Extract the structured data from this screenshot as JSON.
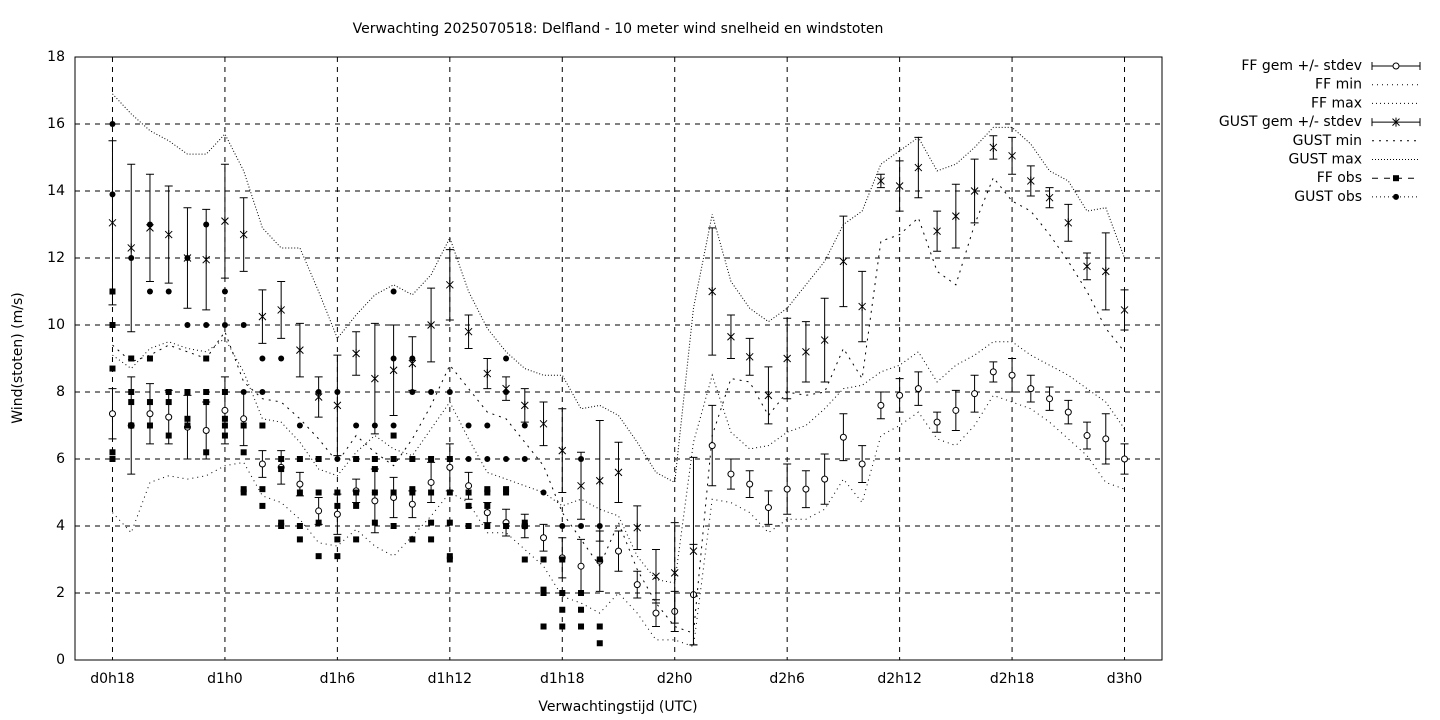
{
  "chart_data": {
    "type": "line",
    "title": "Verwachting 2025070518: Delfland - 10 meter wind snelheid en windstoten",
    "x_label": "Verwachtingstijd (UTC)",
    "y_label": "Wind(stoten) (m/s)",
    "xlim": [
      16,
      74
    ],
    "ylim": [
      0,
      18
    ],
    "yticks": [
      0,
      2,
      4,
      6,
      8,
      10,
      12,
      14,
      16,
      18
    ],
    "xticks": [
      {
        "value": 18,
        "label": "d0h18"
      },
      {
        "value": 24,
        "label": "d1h0"
      },
      {
        "value": 30,
        "label": "d1h6"
      },
      {
        "value": 36,
        "label": "d1h12"
      },
      {
        "value": 42,
        "label": "d1h18"
      },
      {
        "value": 48,
        "label": "d2h0"
      },
      {
        "value": 54,
        "label": "d2h6"
      },
      {
        "value": 60,
        "label": "d2h12"
      },
      {
        "value": 66,
        "label": "d2h18"
      },
      {
        "value": 72,
        "label": "d3h0"
      }
    ],
    "grid": true,
    "legend": "outside-top-right",
    "x": [
      18,
      19,
      20,
      21,
      22,
      23,
      24,
      25,
      26,
      27,
      28,
      29,
      30,
      31,
      32,
      33,
      34,
      35,
      36,
      37,
      38,
      39,
      40,
      41,
      42,
      43,
      44,
      45,
      46,
      47,
      48,
      49,
      50,
      51,
      52,
      53,
      54,
      55,
      56,
      57,
      58,
      59,
      60,
      61,
      62,
      63,
      64,
      65,
      66,
      67,
      68,
      69,
      70,
      71,
      72
    ],
    "series": [
      {
        "name": "FF gem +/- stdev",
        "color": "#000000",
        "style": "errorbar-circle",
        "values": [
          7.35,
          7.0,
          7.35,
          7.25,
          6.95,
          6.85,
          7.45,
          7.2,
          5.85,
          5.75,
          5.25,
          4.45,
          4.35,
          5.05,
          4.75,
          4.85,
          4.65,
          5.3,
          5.75,
          5.2,
          4.4,
          4.1,
          4.0,
          3.65,
          3.05,
          2.8,
          2.95,
          3.25,
          2.25,
          1.4,
          1.45,
          1.95,
          6.4,
          5.55,
          5.25,
          4.55,
          5.1,
          5.1,
          5.4,
          6.65,
          5.85,
          7.6,
          7.9,
          8.1,
          7.1,
          7.45,
          7.95,
          8.6,
          8.5,
          8.1,
          7.8,
          7.4,
          6.7,
          6.6,
          6.0
        ],
        "errors": [
          0.75,
          1.45,
          0.9,
          0.8,
          0.95,
          0.85,
          1.0,
          0.8,
          0.4,
          0.5,
          0.35,
          0.4,
          0.6,
          0.35,
          0.95,
          0.6,
          0.4,
          0.6,
          0.7,
          0.4,
          0.3,
          0.4,
          0.35,
          0.4,
          0.6,
          0.8,
          0.9,
          0.6,
          0.4,
          0.4,
          0.6,
          1.5,
          1.2,
          0.45,
          0.4,
          0.5,
          0.75,
          0.55,
          0.75,
          0.7,
          0.55,
          0.4,
          0.5,
          0.5,
          0.3,
          0.6,
          0.55,
          0.3,
          0.5,
          0.4,
          0.35,
          0.35,
          0.4,
          0.75,
          0.45
        ]
      },
      {
        "name": "FF min",
        "color": "#000000",
        "style": "dotted",
        "dash": "1 4",
        "values": [
          4.4,
          3.8,
          5.3,
          5.5,
          5.4,
          5.5,
          5.8,
          5.9,
          4.9,
          4.7,
          4.2,
          3.5,
          3.4,
          3.9,
          3.4,
          3.1,
          3.7,
          4.3,
          5.0,
          4.7,
          3.8,
          3.8,
          3.3,
          2.8,
          1.9,
          1.7,
          1.4,
          2.0,
          1.4,
          0.6,
          0.6,
          0.4,
          4.8,
          4.7,
          4.4,
          3.8,
          4.2,
          4.2,
          4.5,
          5.4,
          4.7,
          6.7,
          7.0,
          7.4,
          6.6,
          6.4,
          7.0,
          7.9,
          7.7,
          7.5,
          7.1,
          6.6,
          6.1,
          5.3,
          5.1
        ]
      },
      {
        "name": "FF max",
        "color": "#000000",
        "style": "dotted",
        "dash": "1 3",
        "values": [
          9.1,
          8.7,
          9.3,
          9.5,
          9.3,
          9.2,
          9.6,
          8.6,
          7.2,
          7.1,
          6.5,
          5.7,
          5.5,
          6.2,
          6.7,
          6.3,
          6.1,
          6.9,
          7.7,
          6.6,
          5.6,
          5.4,
          5.2,
          5.0,
          4.6,
          4.8,
          4.5,
          4.3,
          3.1,
          2.4,
          2.3,
          6.5,
          8.5,
          6.8,
          6.3,
          6.4,
          6.8,
          7.0,
          7.5,
          8.1,
          8.2,
          8.6,
          8.8,
          9.2,
          8.3,
          8.8,
          9.1,
          9.5,
          9.5,
          9.1,
          8.8,
          8.5,
          8.1,
          7.7,
          6.9
        ]
      },
      {
        "name": "GUST gem +/- stdev",
        "color": "#000000",
        "style": "errorbar-star",
        "values": [
          13.05,
          12.3,
          12.9,
          12.7,
          12.0,
          11.95,
          13.1,
          12.7,
          10.25,
          10.45,
          9.25,
          7.85,
          7.6,
          9.15,
          8.4,
          8.65,
          8.85,
          10.0,
          11.2,
          9.8,
          8.55,
          8.1,
          7.6,
          7.05,
          6.25,
          5.2,
          5.35,
          5.6,
          3.95,
          2.5,
          2.6,
          3.25,
          11.0,
          9.65,
          9.05,
          7.9,
          9.0,
          9.2,
          9.55,
          11.9,
          10.55,
          14.3,
          14.15,
          14.7,
          12.8,
          13.25,
          14.0,
          15.3,
          15.05,
          14.3,
          13.8,
          13.05,
          11.75,
          11.6,
          10.45
        ],
        "errors": [
          2.45,
          2.5,
          1.6,
          1.45,
          1.5,
          1.5,
          1.7,
          1.1,
          0.8,
          0.85,
          0.8,
          0.6,
          1.5,
          0.65,
          1.65,
          1.35,
          0.8,
          1.1,
          1.05,
          0.5,
          0.45,
          0.35,
          0.5,
          0.65,
          1.25,
          1.0,
          1.8,
          0.9,
          0.65,
          0.8,
          1.5,
          2.8,
          1.9,
          0.65,
          0.55,
          0.85,
          1.2,
          0.9,
          1.25,
          1.35,
          1.05,
          0.2,
          0.75,
          0.9,
          0.6,
          0.95,
          0.95,
          0.35,
          0.55,
          0.45,
          0.3,
          0.55,
          0.4,
          1.15,
          0.6
        ]
      },
      {
        "name": "GUST min",
        "color": "#000000",
        "style": "dotted",
        "dash": "2 5",
        "values": [
          9.4,
          8.9,
          9.1,
          9.4,
          9.2,
          9.0,
          9.8,
          8.3,
          7.8,
          7.7,
          7.2,
          6.6,
          5.9,
          6.7,
          6.2,
          5.8,
          6.6,
          7.6,
          8.8,
          8.1,
          7.4,
          7.2,
          6.5,
          5.8,
          4.4,
          3.6,
          2.8,
          4.1,
          2.7,
          1.7,
          1.0,
          0.8,
          6.7,
          8.4,
          8.3,
          7.3,
          8.0,
          7.9,
          8.0,
          9.3,
          8.4,
          12.5,
          12.7,
          13.2,
          11.6,
          11.2,
          13.0,
          14.4,
          13.7,
          13.4,
          12.7,
          11.9,
          11.0,
          9.9,
          9.2
        ]
      },
      {
        "name": "GUST max",
        "color": "#000000",
        "style": "dotted",
        "dash": "1 2",
        "values": [
          16.9,
          16.3,
          15.8,
          15.5,
          15.1,
          15.1,
          15.7,
          14.6,
          12.9,
          12.3,
          12.3,
          11.0,
          9.6,
          10.3,
          10.9,
          11.2,
          10.9,
          11.5,
          12.6,
          11.0,
          9.9,
          9.2,
          8.7,
          8.5,
          8.5,
          7.5,
          7.6,
          7.3,
          6.5,
          5.6,
          5.3,
          10.5,
          13.3,
          11.3,
          10.5,
          10.1,
          10.5,
          11.2,
          11.9,
          13.0,
          13.4,
          14.8,
          15.2,
          15.6,
          14.6,
          14.8,
          15.3,
          15.9,
          15.9,
          15.4,
          14.6,
          14.3,
          13.4,
          13.5,
          12.0
        ]
      },
      {
        "name": "FF obs",
        "color": "#000000",
        "style": "points-square",
        "x": [
          18,
          18,
          18,
          18,
          18,
          19,
          19,
          19,
          19,
          20,
          20,
          20,
          21,
          21,
          21,
          22,
          22,
          22,
          23,
          23,
          23,
          23,
          24,
          24,
          24,
          24,
          25,
          25,
          25,
          25,
          26,
          26,
          26,
          27,
          27,
          27,
          27,
          28,
          28,
          28,
          28,
          29,
          29,
          29,
          29,
          30,
          30,
          30,
          30,
          31,
          31,
          31,
          31,
          32,
          32,
          32,
          32,
          33,
          33,
          33,
          33,
          34,
          34,
          34,
          34,
          35,
          35,
          35,
          35,
          36,
          36,
          36,
          36,
          36,
          37,
          37,
          37,
          38,
          38,
          38,
          38,
          39,
          39,
          39,
          40,
          40,
          40,
          41,
          41,
          41,
          41,
          42,
          42,
          42,
          42,
          43,
          43,
          43,
          44,
          44,
          44
        ],
        "values": [
          11,
          10,
          8.7,
          6.2,
          6,
          9,
          8,
          7.7,
          7,
          9,
          7.7,
          7,
          8,
          7.7,
          6.7,
          8,
          7.2,
          7,
          9,
          8,
          7.7,
          6.2,
          8,
          7.2,
          7,
          6.7,
          7,
          6.2,
          5.1,
          5,
          7,
          5.1,
          4.6,
          6,
          5.7,
          4.1,
          4,
          6,
          5,
          4,
          3.6,
          6,
          5,
          4.1,
          3.1,
          5,
          4.6,
          3.6,
          3.1,
          6,
          5,
          4.6,
          3.6,
          6,
          5.7,
          5,
          4.1,
          6.7,
          6,
          5,
          4,
          6,
          5.1,
          5,
          3.6,
          6,
          5,
          4.1,
          3.6,
          6,
          5,
          4.1,
          3.1,
          3,
          5,
          4.6,
          4,
          5.1,
          5,
          4.6,
          4,
          5.1,
          5,
          4,
          4.1,
          4,
          3,
          3,
          2.1,
          2,
          1,
          3,
          2,
          1.5,
          1,
          2,
          1.5,
          1,
          3,
          1,
          0.5
        ]
      },
      {
        "name": "GUST obs",
        "color": "#000000",
        "style": "points-circle",
        "x": [
          18,
          18,
          18,
          19,
          20,
          20,
          21,
          22,
          22,
          23,
          23,
          24,
          24,
          25,
          25,
          26,
          26,
          27,
          28,
          28,
          29,
          29,
          30,
          30,
          31,
          31,
          32,
          32,
          32,
          33,
          33,
          33,
          34,
          34,
          35,
          35,
          36,
          36,
          37,
          37,
          38,
          38,
          39,
          39,
          39,
          40,
          40,
          41,
          42,
          42,
          43,
          43,
          43,
          44,
          44
        ],
        "values": [
          16,
          13.9,
          10,
          12,
          13,
          11,
          11,
          12,
          10,
          13,
          10,
          11,
          10,
          10,
          8,
          9,
          8,
          9,
          7,
          6,
          8,
          6,
          8,
          6,
          7,
          6,
          7,
          6,
          5,
          11,
          9,
          7,
          9,
          8,
          8,
          6,
          8,
          6,
          7,
          6,
          7,
          6,
          9,
          8,
          6,
          7,
          6,
          5,
          4,
          2,
          6,
          4,
          2,
          4,
          3
        ]
      }
    ]
  }
}
